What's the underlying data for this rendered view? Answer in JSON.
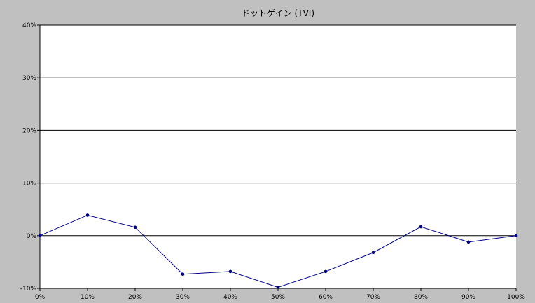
{
  "chart_data": {
    "type": "line",
    "title": "ドットゲイン (TVI)",
    "xlabel": "",
    "ylabel": "",
    "x": [
      "0%",
      "10%",
      "20%",
      "30%",
      "40%",
      "50%",
      "60%",
      "70%",
      "80%",
      "90%",
      "100%"
    ],
    "y_ticks": [
      "40%",
      "30%",
      "20%",
      "10%",
      "0%",
      "-10%"
    ],
    "ylim": [
      -10,
      40
    ],
    "grid": true,
    "series": [
      {
        "values": [
          0,
          3.9,
          1.6,
          -7.3,
          -6.8,
          -9.8,
          -6.8,
          -3.2,
          1.7,
          -1.2,
          0
        ]
      }
    ]
  },
  "colors": {
    "frame": "#c0c0c0",
    "plot_background": "#ffffff",
    "gridline": "#000000",
    "series_line": "#000080",
    "marker": "#000080"
  }
}
